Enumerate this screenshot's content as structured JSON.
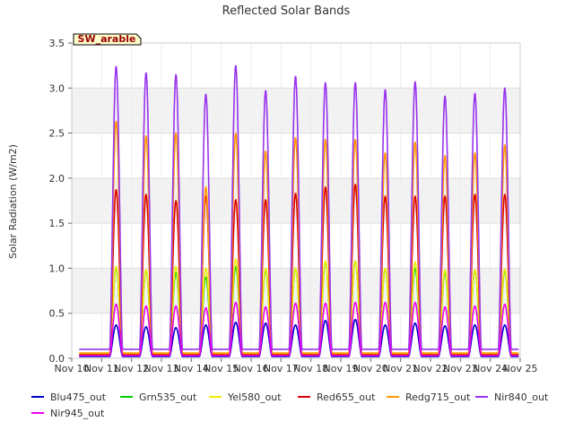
{
  "chart_data": {
    "type": "line",
    "title": "Reflected Solar Bands",
    "ylabel": "Solar Radiation (W/m2)",
    "xlabel": "",
    "ylim": [
      0,
      3.5
    ],
    "xlim": [
      10,
      25
    ],
    "grid": true,
    "legend_position": "bottom",
    "annotation": "SW_arable",
    "x_ticks": [
      {
        "value": 10,
        "label": "Nov 10"
      },
      {
        "value": 11,
        "label": "Nov 11"
      },
      {
        "value": 12,
        "label": "Nov 12"
      },
      {
        "value": 13,
        "label": "Nov 13"
      },
      {
        "value": 14,
        "label": "Nov 14"
      },
      {
        "value": 15,
        "label": "Nov 15"
      },
      {
        "value": 16,
        "label": "Nov 16"
      },
      {
        "value": 17,
        "label": "Nov 17"
      },
      {
        "value": 18,
        "label": "Nov 18"
      },
      {
        "value": 19,
        "label": "Nov 19"
      },
      {
        "value": 20,
        "label": "Nov 20"
      },
      {
        "value": 21,
        "label": "Nov 21"
      },
      {
        "value": 22,
        "label": "Nov 22"
      },
      {
        "value": 23,
        "label": "Nov 23"
      },
      {
        "value": 24,
        "label": "Nov 24"
      },
      {
        "value": 25,
        "label": "Nov 25"
      }
    ],
    "y_ticks": [
      {
        "value": 0.0,
        "label": "0.0"
      },
      {
        "value": 0.5,
        "label": "0.5"
      },
      {
        "value": 1.0,
        "label": "1.0"
      },
      {
        "value": 1.5,
        "label": "1.5"
      },
      {
        "value": 2.0,
        "label": "2.0"
      },
      {
        "value": 2.5,
        "label": "2.5"
      },
      {
        "value": 3.0,
        "label": "3.0"
      },
      {
        "value": 3.5,
        "label": "3.5"
      }
    ],
    "days": [
      11,
      12,
      13,
      14,
      15,
      16,
      17,
      18,
      19,
      20,
      21,
      22,
      23,
      24
    ],
    "series": [
      {
        "name": "Blu475_out",
        "color": "#0000cc",
        "night": 0.02,
        "peaks": [
          0.37,
          0.35,
          0.34,
          0.37,
          0.4,
          0.39,
          0.37,
          0.42,
          0.43,
          0.37,
          0.39,
          0.36,
          0.37,
          0.37
        ]
      },
      {
        "name": "Grn535_out",
        "color": "#00cc00",
        "night": 0.05,
        "peaks": [
          1.0,
          0.97,
          0.95,
          0.9,
          1.02,
          0.98,
          1.0,
          1.07,
          1.08,
          0.99,
          1.0,
          0.95,
          0.97,
          0.97
        ]
      },
      {
        "name": "Yel580_out",
        "color": "#eeee00",
        "night": 0.05,
        "peaks": [
          1.02,
          0.98,
          1.02,
          1.0,
          1.1,
          1.0,
          1.0,
          1.08,
          1.08,
          1.0,
          1.07,
          0.98,
          0.98,
          0.99
        ]
      },
      {
        "name": "Red655_out",
        "color": "#dd0000",
        "night": 0.04,
        "peaks": [
          1.87,
          1.82,
          1.75,
          1.8,
          1.76,
          1.76,
          1.83,
          1.9,
          1.93,
          1.8,
          1.8,
          1.8,
          1.82,
          1.82
        ]
      },
      {
        "name": "Redg715_out",
        "color": "#ff9900",
        "night": 0.06,
        "peaks": [
          2.63,
          2.47,
          2.5,
          1.9,
          2.5,
          2.3,
          2.45,
          2.43,
          2.43,
          2.28,
          2.4,
          2.25,
          2.28,
          2.37
        ]
      },
      {
        "name": "Nir840_out",
        "color": "#9933ee",
        "night": 0.1,
        "peaks": [
          3.24,
          3.17,
          3.15,
          2.93,
          3.25,
          2.97,
          3.13,
          3.06,
          3.06,
          2.98,
          3.07,
          2.91,
          2.94,
          3.0
        ]
      },
      {
        "name": "Nir945_out",
        "color": "#ee00ee",
        "night": 0.03,
        "peaks": [
          0.6,
          0.58,
          0.58,
          0.56,
          0.62,
          0.57,
          0.61,
          0.61,
          0.62,
          0.62,
          0.62,
          0.57,
          0.58,
          0.6
        ]
      }
    ]
  }
}
